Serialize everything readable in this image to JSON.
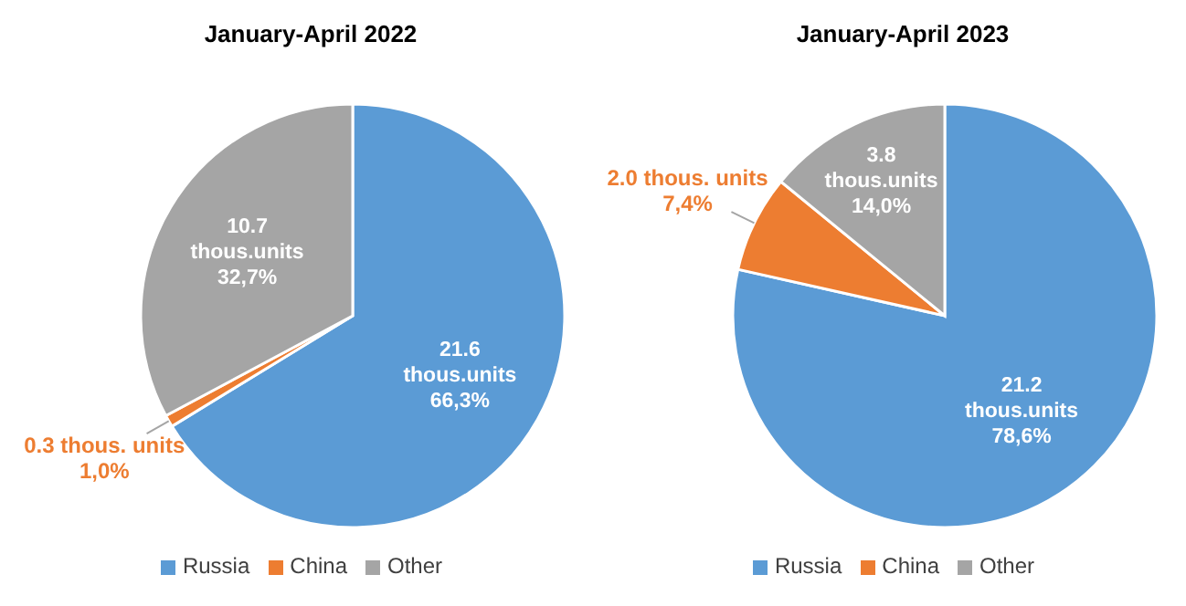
{
  "chart_data": [
    {
      "type": "pie",
      "title": "January-April 2022",
      "categories": [
        "Russia",
        "China",
        "Other"
      ],
      "values": [
        21.6,
        0.3,
        10.7
      ],
      "colors": [
        "#5b9bd5",
        "#ed7d31",
        "#a5a5a5"
      ],
      "value_labels": [
        "21.6\nthous.units\n66,3%",
        "0.3 thous. units\n1,0%",
        "10.7\nthous.units\n32,7%"
      ],
      "legend": "bottom"
    },
    {
      "type": "pie",
      "title": "January-April 2023",
      "categories": [
        "Russia",
        "China",
        "Other"
      ],
      "values": [
        21.2,
        2.0,
        3.8
      ],
      "colors": [
        "#5b9bd5",
        "#ed7d31",
        "#a5a5a5"
      ],
      "value_labels": [
        "21.2\nthous.units\n78,6%",
        "2.0 thous. units\n7,4%",
        "3.8\nthous.units\n14,0%"
      ],
      "legend": "bottom"
    }
  ]
}
